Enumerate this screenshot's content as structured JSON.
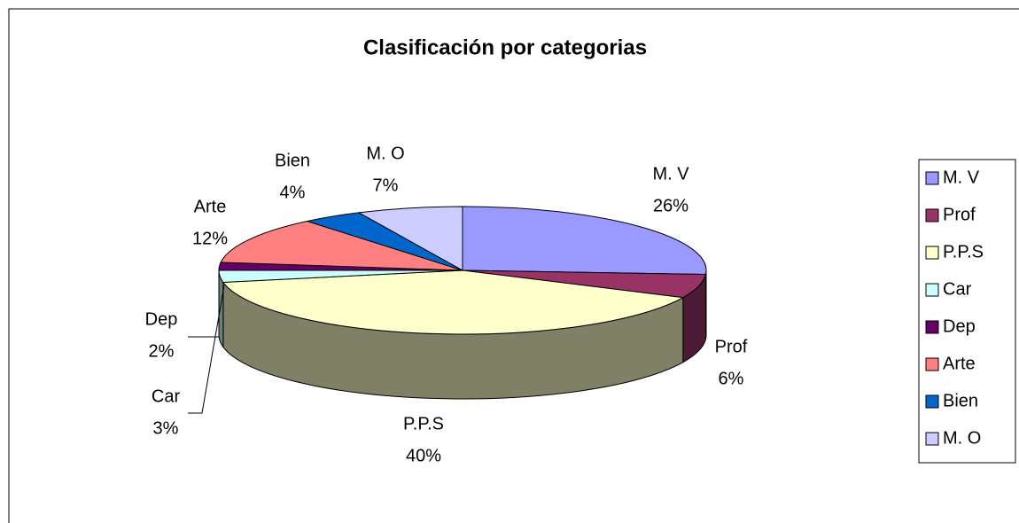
{
  "chart_data": {
    "type": "pie",
    "title": "Clasificación por categorias",
    "categories": [
      "M. V",
      "Prof",
      "P.P.S",
      "Car",
      "Dep",
      "Arte",
      "Bien",
      "M. O"
    ],
    "values": [
      26,
      6,
      40,
      3,
      2,
      12,
      4,
      7
    ],
    "value_labels": [
      "26%",
      "6%",
      "40%",
      "3%",
      "2%",
      "12%",
      "4%",
      "7%"
    ],
    "colors": [
      "#9999ff",
      "#993366",
      "#ffffcc",
      "#ccffff",
      "#660066",
      "#ff8080",
      "#0066cc",
      "#ccccff"
    ],
    "legend": "right"
  }
}
